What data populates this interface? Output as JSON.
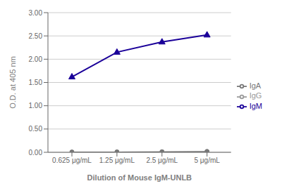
{
  "chart_data": {
    "type": "line",
    "xlabel": "Dilution of Mouse IgM-UNLB",
    "ylabel": "O.D. at 405 nm",
    "categories": [
      "0.625 μg/mL",
      "1.25 μg/mL",
      "2.5 μg/mL",
      "5 μg/mL"
    ],
    "series": [
      {
        "name": "IgG",
        "color": "#999999",
        "marker": "circle",
        "values": [
          0.005,
          0.007,
          0.01,
          0.015
        ]
      },
      {
        "name": "IgA",
        "color": "#777777",
        "marker": "circle",
        "values": [
          0.005,
          0.007,
          0.01,
          0.018
        ]
      },
      {
        "name": "IgM",
        "color": "#1a0099",
        "marker": "triangle",
        "values": [
          1.62,
          2.15,
          2.37,
          2.52
        ]
      }
    ],
    "ylim": [
      0.0,
      3.0
    ],
    "yticks": [
      {
        "value": 0.0,
        "label": "0.00"
      },
      {
        "value": 0.5,
        "label": "0.50"
      },
      {
        "value": 1.0,
        "label": "1.00"
      },
      {
        "value": 1.5,
        "label": "1.50"
      },
      {
        "value": 2.0,
        "label": "2.00"
      },
      {
        "value": 2.5,
        "label": "2.50"
      },
      {
        "value": 3.0,
        "label": "3.00"
      }
    ],
    "grid": true,
    "legend": "right"
  }
}
